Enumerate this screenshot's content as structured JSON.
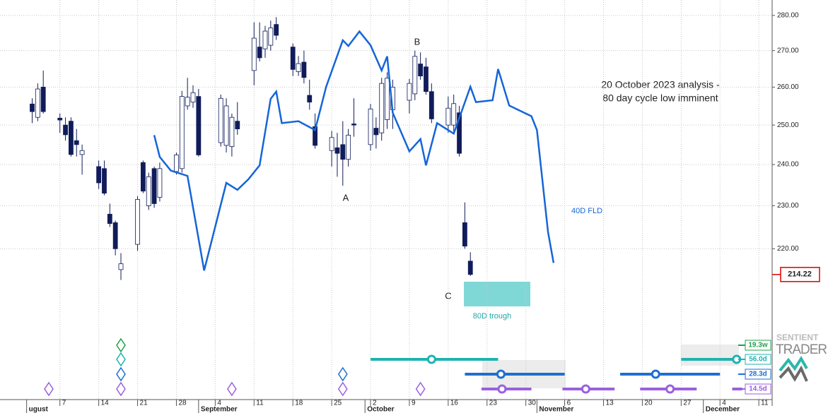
{
  "chart_data": {
    "type": "candlestick",
    "log_scale": true,
    "grid": true,
    "ylim": [
      187,
      284.5
    ],
    "yticks": [
      {
        "value": 220,
        "label": "220.00"
      },
      {
        "value": 230,
        "label": "230.00"
      },
      {
        "value": 240,
        "label": "240.00"
      },
      {
        "value": 250,
        "label": "250.00"
      },
      {
        "value": 260,
        "label": "260.00"
      },
      {
        "value": 270,
        "label": "270.00"
      },
      {
        "value": 280,
        "label": "280.00"
      }
    ],
    "xlim": [
      -3.8,
      135.4
    ],
    "xticks": [
      {
        "value": 7,
        "label": "7"
      },
      {
        "value": 14,
        "label": "14"
      },
      {
        "value": 21,
        "label": "21"
      },
      {
        "value": 28,
        "label": "28"
      },
      {
        "value": 35,
        "label": "4"
      },
      {
        "value": 42,
        "label": "11"
      },
      {
        "value": 49,
        "label": "18"
      },
      {
        "value": 56,
        "label": "25"
      },
      {
        "value": 63,
        "label": "2"
      },
      {
        "value": 70,
        "label": "9"
      },
      {
        "value": 77,
        "label": "16"
      },
      {
        "value": 84,
        "label": "23"
      },
      {
        "value": 91,
        "label": "30"
      },
      {
        "value": 98,
        "label": "6"
      },
      {
        "value": 105,
        "label": "13"
      },
      {
        "value": 112,
        "label": "20"
      },
      {
        "value": 119,
        "label": "27"
      },
      {
        "value": 126,
        "label": "4"
      },
      {
        "value": 133,
        "label": "11"
      }
    ],
    "month_ticks": [
      {
        "value": 1,
        "label": "ugust"
      },
      {
        "value": 32,
        "label": "September"
      },
      {
        "value": 62,
        "label": "October"
      },
      {
        "value": 93,
        "label": "November"
      },
      {
        "value": 123,
        "label": "December"
      }
    ],
    "up_color": "#ffffff",
    "down_color": "#101c5a",
    "x": [
      2,
      3,
      4,
      7,
      8,
      9,
      10,
      11,
      14,
      15,
      16,
      17,
      18,
      21,
      22,
      23,
      24,
      25,
      28,
      29,
      30,
      31,
      32,
      36,
      37,
      38,
      39,
      42,
      43,
      44,
      45,
      46,
      49,
      50,
      51,
      52,
      53,
      56,
      57,
      58,
      59,
      60,
      63,
      64,
      65,
      66,
      67,
      70,
      71,
      72,
      73,
      74,
      77,
      78,
      79,
      80,
      81
    ],
    "open": [
      255.5,
      252,
      260,
      251.8,
      250,
      251,
      246,
      242.5,
      239.5,
      239,
      228,
      226,
      215.3,
      221,
      240.5,
      230,
      239,
      232,
      238.3,
      239,
      255,
      256,
      257.5,
      245.5,
      244.8,
      244.5,
      251,
      264.5,
      271,
      270.5,
      271.5,
      277.4,
      271,
      264.2,
      266.8,
      257.8,
      249.6,
      243.5,
      244.2,
      245,
      241.3,
      250.3,
      245,
      249.2,
      248,
      251.4,
      254,
      256.5,
      258.2,
      266.3,
      265.5,
      258.8,
      250,
      250,
      253.2,
      226,
      217.2
    ],
    "high": [
      257,
      261,
      264.5,
      253,
      252,
      252,
      249,
      245,
      241,
      241,
      230.5,
      226.5,
      219,
      232.3,
      241,
      238,
      239.5,
      240.5,
      243,
      259,
      262.5,
      260.5,
      259.5,
      258,
      257,
      253,
      256,
      278,
      278,
      277,
      278.5,
      279.5,
      272,
      268.5,
      270,
      262,
      253,
      248.5,
      248,
      251,
      249,
      257,
      255.5,
      252,
      262.5,
      264,
      262,
      262.2,
      270,
      269.5,
      268,
      261,
      257.5,
      258,
      255,
      230.8,
      219.2
    ],
    "low": [
      250.5,
      251,
      253,
      248,
      246,
      242,
      242,
      237.5,
      234,
      232.5,
      225,
      218.5,
      213,
      219.5,
      233,
      229,
      229.5,
      231,
      237.5,
      238,
      254,
      254.5,
      242,
      244.5,
      243,
      242,
      247.5,
      260.5,
      267,
      268,
      270,
      273,
      263,
      263,
      261,
      254,
      244,
      239.5,
      237,
      234.8,
      239.5,
      247,
      243.5,
      244,
      246,
      249,
      249,
      253,
      256.5,
      262,
      258,
      250.5,
      248,
      248,
      242,
      220,
      213.9
    ],
    "close": [
      253.5,
      259.5,
      253.5,
      251.3,
      247.5,
      242.5,
      245,
      243.5,
      235.5,
      233,
      225.8,
      220,
      216.6,
      231.5,
      233.5,
      237,
      230.5,
      239,
      242.4,
      257.5,
      257.3,
      258.5,
      242.4,
      257,
      255,
      252,
      249,
      273.5,
      268,
      275.5,
      276.4,
      274.3,
      264.8,
      266.4,
      262.6,
      256,
      244.8,
      246.8,
      242.8,
      241.3,
      247.4,
      250,
      254.2,
      247.5,
      261,
      262.4,
      260,
      261,
      268.4,
      263,
      258.8,
      251.6,
      254.4,
      255.6,
      242.8,
      220.6,
      214.22
    ],
    "last_price_label": "214.22",
    "fld": {
      "name": "40D FLD",
      "color": "#1565d8",
      "x": [
        24,
        25,
        27,
        30,
        33,
        37,
        39,
        41,
        43,
        45,
        46,
        47,
        50,
        53,
        55,
        58,
        59,
        61,
        63,
        65,
        66,
        67,
        70,
        72,
        73,
        75,
        78,
        81,
        82,
        85,
        86,
        88,
        92,
        93,
        95,
        96
      ],
      "values": [
        247.4,
        241.9,
        238.5,
        237.2,
        215.1,
        235.5,
        233.8,
        236.4,
        239.8,
        256.9,
        258.8,
        250.5,
        251.0,
        248.7,
        260.1,
        272.9,
        271.3,
        275.4,
        271.5,
        264.5,
        268.4,
        253.2,
        243.3,
        246.4,
        239.8,
        250.5,
        247.8,
        260.1,
        256.0,
        256.5,
        264.9,
        255.1,
        252.3,
        248.7,
        223.8,
        216.8
      ]
    },
    "annotations": {
      "a": "A",
      "b": "B",
      "c": "C",
      "trough": "80D trough",
      "note_line1": "20 October 2023 analysis -",
      "note_line2": "80 day cycle low imminent"
    },
    "cycles": [
      {
        "label": "19.3w",
        "color": "#22a04a",
        "diamonds": [
          18
        ],
        "projections": []
      },
      {
        "label": "56.0d",
        "color": "#1fb3b0",
        "diamonds": [
          18
        ],
        "projections": [
          {
            "start": 63,
            "mid": 74,
            "end": 86
          },
          {
            "start": 119,
            "mid": 129,
            "end": 129
          }
        ]
      },
      {
        "label": "28.3d",
        "color": "#1e6fd0",
        "diamonds": [
          18,
          58
        ],
        "projections": [
          {
            "start": 80,
            "mid": 86.5,
            "end": 98
          },
          {
            "start": 108,
            "mid": 114.4,
            "end": 126
          }
        ]
      },
      {
        "label": "14.5d",
        "color": "#9b5fe0",
        "diamonds": [
          5,
          18,
          38,
          58,
          72
        ],
        "projections": [
          {
            "start": 83,
            "mid": 86.7,
            "end": 92
          },
          {
            "start": 97.6,
            "mid": 101.8,
            "end": 107
          },
          {
            "start": 111.6,
            "mid": 117,
            "end": 121.8
          },
          {
            "start": 128.2,
            "end": 130
          }
        ]
      }
    ],
    "logo": {
      "line1": "SENTIENT",
      "line2": "TRADER"
    }
  }
}
